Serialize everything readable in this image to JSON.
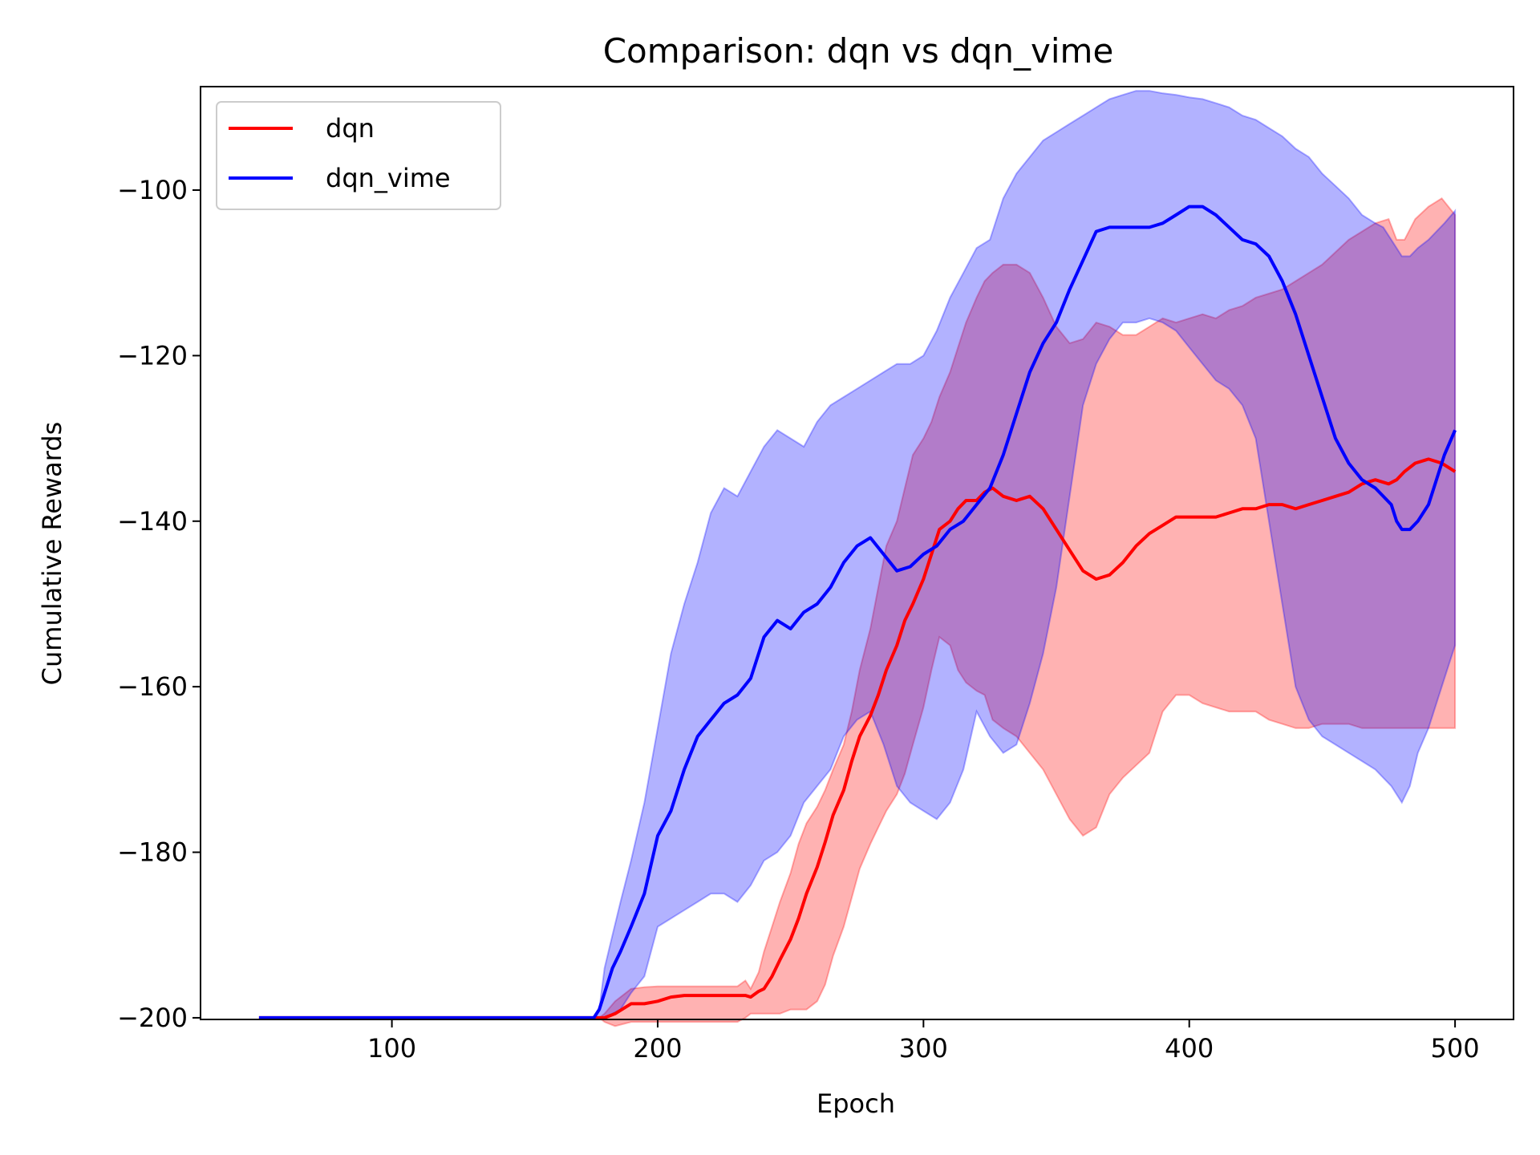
{
  "chart_data": {
    "type": "line",
    "title": "Comparison: dqn vs dqn_vime",
    "xlabel": "Epoch",
    "ylabel": "Cumulative Rewards",
    "xlim": [
      28,
      522
    ],
    "ylim": [
      -200.2,
      -87.5
    ],
    "xticks": [
      100,
      200,
      300,
      400,
      500
    ],
    "yticks": [
      -100,
      -120,
      -140,
      -160,
      -180,
      -200
    ],
    "grid": false,
    "legend_position": "upper-left",
    "series": [
      {
        "name": "dqn",
        "color": "#ff0000",
        "x": [
          50,
          100,
          150,
          178,
          180,
          184,
          190,
          195,
          200,
          205,
          210,
          220,
          230,
          233,
          235,
          238,
          240,
          243,
          246,
          250,
          253,
          256,
          260,
          263,
          266,
          270,
          273,
          276,
          280,
          283,
          286,
          290,
          293,
          296,
          300,
          303,
          306,
          310,
          313,
          316,
          320,
          323,
          326,
          330,
          335,
          340,
          345,
          350,
          355,
          360,
          365,
          370,
          375,
          380,
          385,
          390,
          395,
          400,
          405,
          410,
          415,
          420,
          425,
          430,
          435,
          440,
          445,
          450,
          455,
          460,
          465,
          470,
          475,
          478,
          481,
          485,
          490,
          495,
          500
        ],
        "mean": [
          -200,
          -200,
          -200,
          -200,
          -200,
          -199.5,
          -198.3,
          -198.3,
          -198,
          -197.5,
          -197.3,
          -197.3,
          -197.3,
          -197.3,
          -197.5,
          -196.8,
          -196.5,
          -195,
          -193,
          -190.5,
          -188,
          -185,
          -181.8,
          -178.8,
          -175.5,
          -172.5,
          -169,
          -166,
          -163.5,
          -161,
          -158,
          -155,
          -152,
          -150,
          -147,
          -144,
          -141,
          -140,
          -138.5,
          -137.5,
          -137.5,
          -136.5,
          -136,
          -137,
          -137.5,
          -137,
          -138.5,
          -141,
          -143.5,
          -146,
          -147,
          -146.5,
          -145,
          -143,
          -141.5,
          -140.5,
          -139.5,
          -139.5,
          -139.5,
          -139.5,
          -139,
          -138.5,
          -138.5,
          -138,
          -138,
          -138.5,
          -138,
          -137.5,
          -137,
          -136.5,
          -135.5,
          -135,
          -135.5,
          -135,
          -134,
          -133,
          -132.5,
          -133,
          -134
        ],
        "upper": [
          -200,
          -200,
          -200,
          -200,
          -199.5,
          -198,
          -196.5,
          -196.3,
          -196.2,
          -196.2,
          -196.2,
          -196.2,
          -196.2,
          -195.5,
          -196.5,
          -194.5,
          -192,
          -189,
          -186,
          -182.5,
          -179,
          -176.5,
          -174.5,
          -172.5,
          -170,
          -167,
          -163,
          -158,
          -153,
          -148,
          -143,
          -140,
          -136,
          -132,
          -130,
          -128,
          -125,
          -122,
          -119,
          -116,
          -113,
          -111,
          -110,
          -109,
          -109,
          -110,
          -113,
          -116.5,
          -118.5,
          -118,
          -116,
          -116.5,
          -117.5,
          -117.5,
          -116.5,
          -115.5,
          -116,
          -115.5,
          -115,
          -115.5,
          -114.5,
          -114,
          -113,
          -112.5,
          -112,
          -111,
          -110,
          -109,
          -107.5,
          -106,
          -105,
          -104,
          -103.5,
          -106,
          -106,
          -103.5,
          -102,
          -101,
          -103
        ],
        "lower": [
          -200,
          -200,
          -200,
          -200,
          -200.5,
          -201,
          -200.5,
          -200.5,
          -200.5,
          -200.5,
          -200.5,
          -200.5,
          -200.5,
          -200,
          -199.5,
          -199.5,
          -199.5,
          -199.5,
          -199.5,
          -199,
          -199,
          -199,
          -198,
          -196,
          -192.5,
          -189,
          -185.5,
          -182,
          -179,
          -177,
          -175,
          -173,
          -170.5,
          -167,
          -162.5,
          -158,
          -154,
          -155,
          -158,
          -159.5,
          -160.5,
          -161,
          -164,
          -165,
          -166,
          -168,
          -170,
          -173,
          -176,
          -178,
          -177,
          -173,
          -171,
          -169.5,
          -168,
          -163,
          -161,
          -161,
          -162,
          -162.5,
          -163,
          -163,
          -163,
          -164,
          -164.5,
          -165,
          -165,
          -164.5,
          -164.5,
          -164.5,
          -165,
          -165,
          -165,
          -165,
          -165,
          -165,
          -165,
          -165,
          -165
        ]
      },
      {
        "name": "dqn_vime",
        "color": "#0000ff",
        "x": [
          50,
          100,
          150,
          170,
          176,
          178,
          180,
          183,
          186,
          190,
          195,
          200,
          205,
          210,
          215,
          220,
          225,
          230,
          235,
          240,
          245,
          250,
          255,
          260,
          265,
          270,
          275,
          280,
          285,
          290,
          295,
          300,
          305,
          310,
          315,
          320,
          325,
          330,
          335,
          340,
          345,
          350,
          355,
          360,
          365,
          370,
          375,
          380,
          385,
          390,
          395,
          400,
          405,
          410,
          415,
          420,
          425,
          430,
          435,
          440,
          445,
          450,
          455,
          460,
          465,
          470,
          473,
          476,
          478,
          480,
          483,
          486,
          490,
          493,
          496,
          500
        ],
        "mean": [
          -200,
          -200,
          -200,
          -200,
          -200,
          -199,
          -197,
          -194,
          -192,
          -189,
          -185,
          -178,
          -175,
          -170,
          -166,
          -164,
          -162,
          -161,
          -159,
          -154,
          -152,
          -153,
          -151,
          -150,
          -148,
          -145,
          -143,
          -142,
          -144,
          -146,
          -145.5,
          -144,
          -143,
          -141,
          -140,
          -138,
          -136,
          -132,
          -127,
          -122,
          -118.5,
          -116,
          -112,
          -108.5,
          -105,
          -104.5,
          -104.5,
          -104.5,
          -104.5,
          -104,
          -103,
          -102,
          -102,
          -103,
          -104.5,
          -106,
          -106.5,
          -108,
          -111,
          -115,
          -120,
          -125,
          -130,
          -133,
          -135,
          -136,
          -137,
          -138,
          -140,
          -141,
          -141,
          -140,
          -138,
          -135,
          -132,
          -129
        ]
      }
    ]
  },
  "band_colors": {
    "dqn": "#ff0000",
    "dqn_vime": "#0000ff"
  },
  "vime_band": {
    "x": [
      50,
      100,
      150,
      170,
      176,
      178,
      180,
      183,
      186,
      190,
      195,
      200,
      205,
      210,
      215,
      220,
      225,
      230,
      235,
      240,
      245,
      250,
      255,
      260,
      265,
      270,
      275,
      280,
      285,
      290,
      295,
      300,
      305,
      310,
      315,
      320,
      325,
      330,
      335,
      340,
      345,
      350,
      355,
      360,
      365,
      370,
      375,
      380,
      385,
      390,
      395,
      400,
      405,
      410,
      415,
      420,
      425,
      430,
      435,
      440,
      445,
      450,
      455,
      460,
      465,
      470,
      473,
      476,
      478,
      480,
      483,
      486,
      490,
      493,
      496,
      500
    ],
    "upper": [
      -200,
      -200,
      -200,
      -200,
      -200,
      -199,
      -194,
      -190,
      -186,
      -181,
      -174,
      -165,
      -156,
      -150,
      -145,
      -139,
      -136,
      -137,
      -134,
      -131,
      -129,
      -130,
      -131,
      -128,
      -126,
      -125,
      -124,
      -123,
      -122,
      -121,
      -121,
      -120,
      -117,
      -113,
      -110,
      -107,
      -106,
      -101,
      -98,
      -96,
      -94,
      -93,
      -92,
      -91,
      -90,
      -89,
      -88.5,
      -88,
      -88,
      -88.3,
      -88.5,
      -88.8,
      -89,
      -89.5,
      -90,
      -91,
      -91.5,
      -92.5,
      -93.5,
      -95,
      -96,
      -98,
      -99.5,
      -101,
      -103,
      -104,
      -104.5,
      -106,
      -107,
      -108,
      -108,
      -107,
      -106,
      -105,
      -104,
      -102.5
    ],
    "lower": [
      -200,
      -200,
      -200,
      -200,
      -200,
      -200,
      -200,
      -199.5,
      -199,
      -197,
      -195,
      -189,
      -188,
      -187,
      -186,
      -185,
      -185,
      -186,
      -184,
      -181,
      -180,
      -178,
      -174,
      -172,
      -170,
      -166,
      -164,
      -163,
      -167,
      -172,
      -174,
      -175,
      -176,
      -174,
      -170,
      -163,
      -166,
      -168,
      -167,
      -162,
      -156,
      -148,
      -137,
      -126,
      -121,
      -118,
      -116,
      -116,
      -115.5,
      -116,
      -117,
      -119,
      -121,
      -123,
      -124,
      -126,
      -130,
      -140,
      -150,
      -160,
      -164,
      -166,
      -167,
      -168,
      -169,
      -170,
      -171,
      -172,
      -173,
      -174,
      -172,
      -168,
      -165,
      -162,
      -159,
      -155
    ]
  },
  "dqn_band_tail": {
    "x_end": 500,
    "upper_end": -103,
    "lower_end": -165
  },
  "vime_band_tail": {
    "x_end": 500,
    "upper_end": -102.5,
    "lower_end": -155
  },
  "legend_items": [
    {
      "label": "dqn",
      "color": "#ff0000"
    },
    {
      "label": "dqn_vime",
      "color": "#0000ff"
    }
  ]
}
